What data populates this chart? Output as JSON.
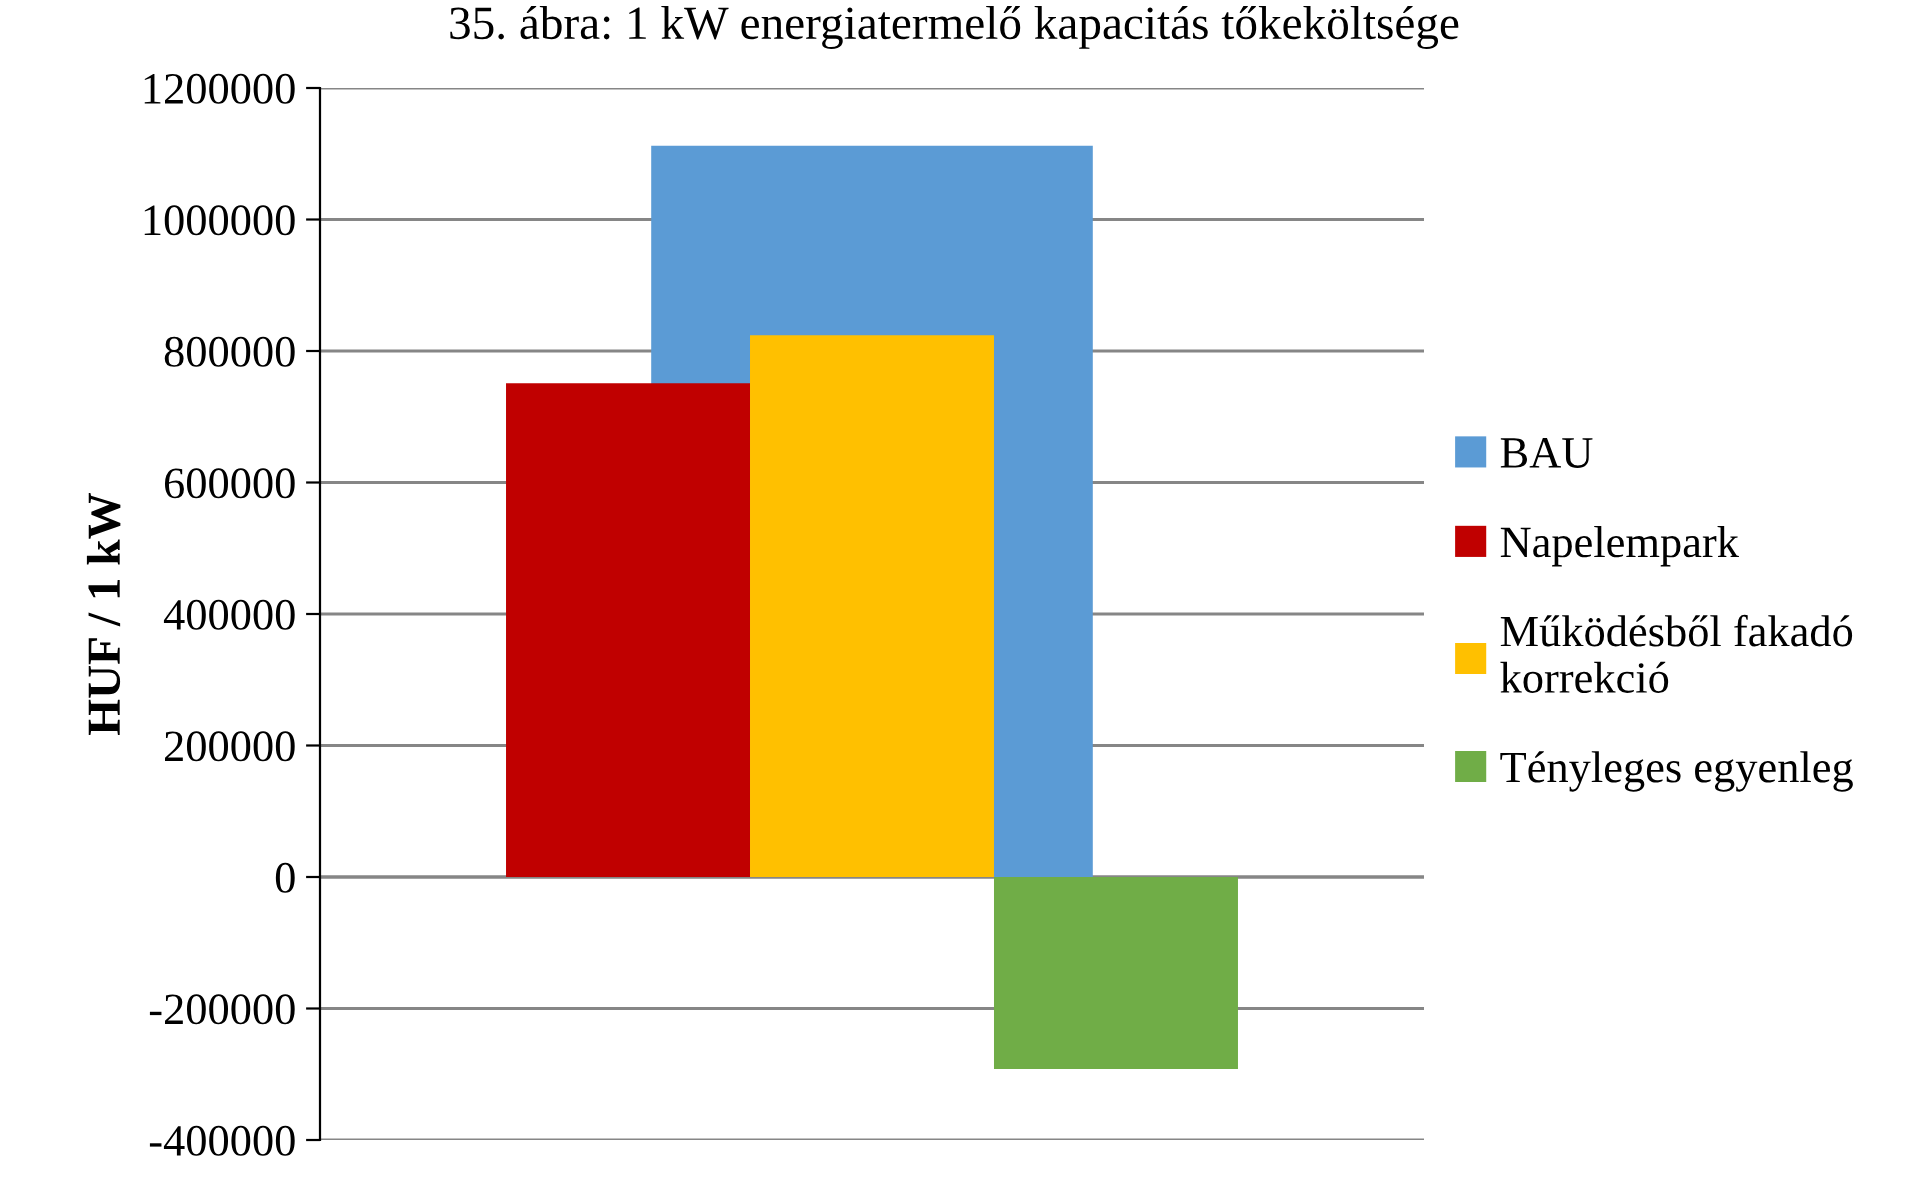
{
  "chart_data": {
    "type": "bar",
    "title": "35. ábra: 1 kW energiatermelő kapacitás tőkeköltsége",
    "ylabel": "HUF / 1 kW",
    "categories": [
      null
    ],
    "series": [
      {
        "name": "BAU",
        "color": "#5b9bd5",
        "values": [
          1112000
        ]
      },
      {
        "name": "Napelempark",
        "color": "#c00000",
        "values": [
          751000
        ]
      },
      {
        "name": "Működésből fakadó\nkorrekció",
        "color": "#ffc000",
        "values": [
          824000
        ]
      },
      {
        "name": "Tényleges egyenleg",
        "color": "#70ad47",
        "values": [
          -292000
        ]
      }
    ],
    "ylim": [
      -400000,
      1200000
    ],
    "yticks": [
      -400000,
      -200000,
      0,
      200000,
      400000,
      600000,
      800000,
      1000000,
      1200000
    ],
    "grid": "y",
    "legend": "right",
    "tick_labels": "y"
  }
}
